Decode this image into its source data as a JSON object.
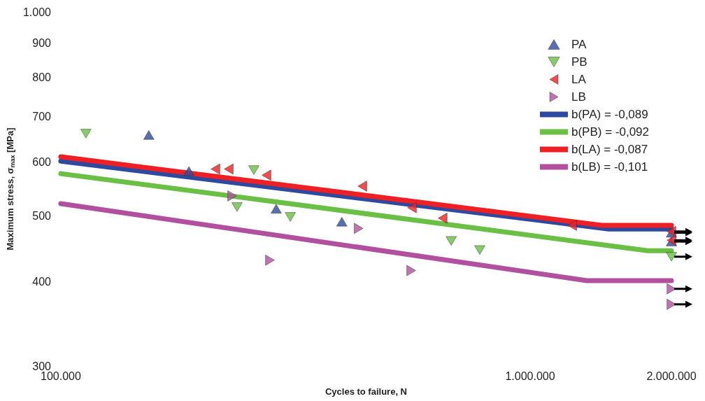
{
  "chart_data": {
    "type": "scatter",
    "xlabel": "Cycles to failure, N",
    "ylabel": "Maximum stress, σ$_{max}$ [MPa]",
    "log": "xy",
    "grid": false,
    "legend": "top right",
    "xlim": [
      100000,
      2000000
    ],
    "xticks": [
      {
        "value": 100000,
        "label": "100.000"
      },
      {
        "value": 1000000,
        "label": "1.000.000"
      },
      {
        "value": 2000000,
        "label": "2.000.000"
      }
    ],
    "ylim": [
      300,
      1000
    ],
    "yticks": [
      300,
      400,
      500,
      600,
      700,
      800,
      900,
      {
        "value": 1000,
        "label": "1.000"
      }
    ],
    "series": [
      {
        "name": "PA",
        "marker": "triangle",
        "color": "#2e4a9e",
        "x": [
          154000,
          187500,
          287700,
          397000,
          2000000,
          2000000
        ],
        "values": [
          658,
          582,
          512,
          490,
          472,
          458
        ]
      },
      {
        "name": "PB",
        "marker": "triangle-down",
        "color": "#6abf45",
        "x": [
          113100,
          257800,
          237400,
          308300,
          679000,
          781000,
          2000000
        ],
        "values": [
          661,
          584,
          515,
          498,
          459,
          445,
          435
        ]
      },
      {
        "name": "LA",
        "marker": "triangle-left",
        "color": "#ee2024",
        "x": [
          213500,
          227900,
          274300,
          439000,
          560000,
          651000,
          1229000,
          2000000,
          2000000
        ],
        "values": [
          586,
          586,
          574,
          553,
          514,
          496,
          484,
          474,
          460
        ]
      },
      {
        "name": "LB",
        "marker": "triangle-right",
        "color": "#b0509f",
        "x": [
          231800,
          279000,
          431000,
          558000,
          2000000,
          2000000
        ],
        "values": [
          535,
          430,
          479,
          415,
          390,
          370
        ]
      },
      {
        "name": "b(PA) = -0,089",
        "type": "line",
        "marker": "none",
        "color": "#2e4a9e",
        "x": [
          100000,
          1470000,
          2000000
        ],
        "values": [
          602,
          478,
          478
        ]
      },
      {
        "name": "b(PB) = -0,092",
        "type": "line",
        "marker": "none",
        "color": "#6abf45",
        "x": [
          100000,
          1780000,
          2000000
        ],
        "values": [
          577,
          444,
          444
        ]
      },
      {
        "name": "b(LA) = -0,087",
        "type": "line",
        "marker": "none",
        "color": "#ee2024",
        "x": [
          100000,
          1420000,
          2000000
        ],
        "values": [
          611,
          484,
          484
        ]
      },
      {
        "name": "b(LB) = -0,101",
        "type": "line",
        "marker": "none",
        "color": "#b0509f",
        "x": [
          100000,
          1320000,
          2000000
        ],
        "values": [
          521,
          401,
          401
        ]
      }
    ]
  }
}
